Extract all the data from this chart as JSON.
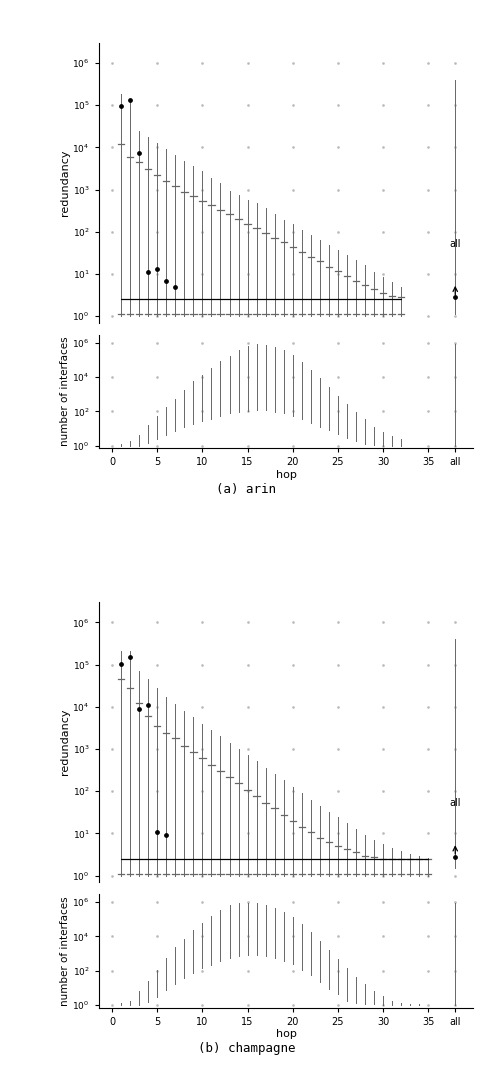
{
  "panels": [
    {
      "name": "arin",
      "label": "(a) arin",
      "redundancy": {
        "hops": [
          1,
          2,
          3,
          4,
          5,
          6,
          7,
          8,
          9,
          10,
          11,
          12,
          13,
          14,
          15,
          16,
          17,
          18,
          19,
          20,
          21,
          22,
          23,
          24,
          25,
          26,
          27,
          28,
          29,
          30,
          31,
          32
        ],
        "q50": [
          2.5,
          2.5,
          2.5,
          2.5,
          2.5,
          2.5,
          2.5,
          2.5,
          2.5,
          2.5,
          2.5,
          2.5,
          2.5,
          2.5,
          2.5,
          2.5,
          2.5,
          2.5,
          2.5,
          2.5,
          2.5,
          2.5,
          2.5,
          2.5,
          2.5,
          2.5,
          2.5,
          2.5,
          2.5,
          2.5,
          2.5,
          2.5
        ],
        "q25": [
          1.1,
          1.1,
          1.1,
          1.1,
          1.1,
          1.1,
          1.1,
          1.1,
          1.1,
          1.1,
          1.1,
          1.1,
          1.1,
          1.1,
          1.1,
          1.1,
          1.1,
          1.1,
          1.1,
          1.1,
          1.1,
          1.1,
          1.1,
          1.1,
          1.1,
          1.1,
          1.1,
          1.1,
          1.1,
          1.1,
          1.1,
          1.1
        ],
        "q75": [
          12000,
          6000,
          4500,
          3000,
          2200,
          1600,
          1200,
          900,
          700,
          550,
          430,
          330,
          260,
          200,
          155,
          120,
          95,
          72,
          57,
          43,
          33,
          26,
          20,
          15,
          12,
          9,
          7,
          5.5,
          4.5,
          3.5,
          3.0,
          2.8
        ],
        "q95": [
          180000,
          120000,
          25000,
          18000,
          13000,
          9000,
          6500,
          4700,
          3700,
          2800,
          1900,
          1400,
          950,
          750,
          570,
          470,
          360,
          265,
          190,
          150,
          110,
          85,
          65,
          48,
          37,
          28,
          21,
          16,
          11,
          8.5,
          6.5,
          4.8
        ],
        "q05": [
          1.0,
          1.0,
          1.0,
          1.0,
          1.0,
          1.0,
          1.0,
          1.0,
          1.0,
          1.0,
          1.0,
          1.0,
          1.0,
          1.0,
          1.0,
          1.0,
          1.0,
          1.0,
          1.0,
          1.0,
          1.0,
          1.0,
          1.0,
          1.0,
          1.0,
          1.0,
          1.0,
          1.0,
          1.0,
          1.0,
          1.0,
          1.0
        ],
        "dots_x": [
          1,
          2,
          3,
          4,
          5,
          6,
          7
        ],
        "dots_y": [
          95000,
          130000,
          7500,
          11,
          13,
          7,
          5
        ],
        "all_q05": 1.1,
        "all_q50": 2.8,
        "all_q95": 400000
      },
      "interfaces": {
        "hops": [
          1,
          2,
          3,
          4,
          5,
          6,
          7,
          8,
          9,
          10,
          11,
          12,
          13,
          14,
          15,
          16,
          17,
          18,
          19,
          20,
          21,
          22,
          23,
          24,
          25,
          26,
          27,
          28,
          29,
          30,
          31,
          32
        ],
        "q05": [
          1,
          1,
          1,
          1.5,
          2.5,
          4,
          7,
          12,
          18,
          26,
          38,
          55,
          75,
          95,
          110,
          120,
          115,
          95,
          75,
          55,
          36,
          22,
          13,
          8,
          4.5,
          2.8,
          1.8,
          1.3,
          1.1,
          1.0,
          1.0,
          1.0
        ],
        "q95": [
          1.3,
          1.8,
          4,
          16,
          50,
          170,
          520,
          1700,
          5500,
          13000,
          35000,
          90000,
          180000,
          370000,
          640000,
          820000,
          740000,
          560000,
          370000,
          185000,
          73000,
          27000,
          9000,
          2700,
          820,
          270,
          90,
          35,
          13,
          6,
          3.5,
          2.3
        ],
        "all_q05": 1,
        "all_q95": 850000
      }
    },
    {
      "name": "champagne",
      "label": "(b) champagne",
      "redundancy": {
        "hops": [
          1,
          2,
          3,
          4,
          5,
          6,
          7,
          8,
          9,
          10,
          11,
          12,
          13,
          14,
          15,
          16,
          17,
          18,
          19,
          20,
          21,
          22,
          23,
          24,
          25,
          26,
          27,
          28,
          29,
          30,
          31,
          32,
          33,
          34,
          35
        ],
        "q50": [
          2.5,
          2.5,
          2.5,
          2.5,
          2.5,
          2.5,
          2.5,
          2.5,
          2.5,
          2.5,
          2.5,
          2.5,
          2.5,
          2.5,
          2.5,
          2.5,
          2.5,
          2.5,
          2.5,
          2.5,
          2.5,
          2.5,
          2.5,
          2.5,
          2.5,
          2.5,
          2.5,
          2.5,
          2.5,
          2.5,
          2.5,
          2.5,
          2.5,
          2.5,
          2.5
        ],
        "q25": [
          1.1,
          1.1,
          1.1,
          1.1,
          1.1,
          1.1,
          1.1,
          1.1,
          1.1,
          1.1,
          1.1,
          1.1,
          1.1,
          1.1,
          1.1,
          1.1,
          1.1,
          1.1,
          1.1,
          1.1,
          1.1,
          1.1,
          1.1,
          1.1,
          1.1,
          1.1,
          1.1,
          1.1,
          1.1,
          1.1,
          1.1,
          1.1,
          1.1,
          1.1,
          1.1
        ],
        "q75": [
          45000,
          28000,
          12000,
          6000,
          3500,
          2400,
          1800,
          1200,
          850,
          600,
          420,
          300,
          215,
          155,
          108,
          78,
          54,
          39,
          27,
          20,
          14,
          11,
          8,
          6.2,
          5.0,
          4.2,
          3.6,
          3.0,
          2.7,
          2.5,
          2.5,
          2.5,
          2.5,
          2.5,
          2.5
        ],
        "q95": [
          210000,
          210000,
          70000,
          45000,
          28000,
          17000,
          11500,
          8000,
          5700,
          4000,
          2800,
          2000,
          1400,
          1000,
          730,
          510,
          360,
          250,
          180,
          125,
          90,
          62,
          45,
          33,
          24,
          18,
          13,
          9,
          7,
          5.5,
          4.5,
          3.8,
          3.2,
          2.9,
          2.6
        ],
        "q05": [
          1.0,
          1.0,
          1.0,
          1.0,
          1.0,
          1.0,
          1.0,
          1.0,
          1.0,
          1.0,
          1.0,
          1.0,
          1.0,
          1.0,
          1.0,
          1.0,
          1.0,
          1.0,
          1.0,
          1.0,
          1.0,
          1.0,
          1.0,
          1.0,
          1.0,
          1.0,
          1.0,
          1.0,
          1.0,
          1.0,
          1.0,
          1.0,
          1.0,
          1.0,
          1.0
        ],
        "dots_x": [
          1,
          2,
          3,
          4,
          5,
          6
        ],
        "dots_y": [
          105000,
          155000,
          9000,
          11000,
          11,
          9
        ],
        "all_q05": 1.5,
        "all_q50": 2.8,
        "all_q95": 400000
      },
      "interfaces": {
        "hops": [
          1,
          2,
          3,
          4,
          5,
          6,
          7,
          8,
          9,
          10,
          11,
          12,
          13,
          14,
          15,
          16,
          17,
          18,
          19,
          20,
          21,
          22,
          23,
          24,
          25,
          26,
          27,
          28,
          29,
          30,
          31,
          32,
          33,
          34,
          35
        ],
        "q05": [
          1,
          1,
          1,
          1.5,
          3,
          8,
          18,
          38,
          75,
          140,
          230,
          370,
          560,
          750,
          860,
          870,
          770,
          580,
          380,
          235,
          110,
          55,
          23,
          9,
          4.5,
          1.8,
          1.4,
          1.2,
          1.1,
          1.0,
          1.0,
          1.0,
          1.0,
          1.0,
          1.0
        ],
        "q95": [
          1.3,
          1.8,
          7,
          26,
          110,
          560,
          2300,
          7500,
          23000,
          65000,
          165000,
          370000,
          650000,
          840000,
          950000,
          850000,
          660000,
          470000,
          280000,
          140000,
          55000,
          18000,
          5500,
          1650,
          470,
          140,
          46,
          16,
          6.5,
          3.2,
          1.8,
          1.4,
          1.2,
          1.1,
          1.0
        ],
        "all_q05": 1,
        "all_q95": 850000
      }
    }
  ],
  "xticks_main": [
    0,
    5,
    10,
    15,
    20,
    25,
    30,
    35
  ],
  "color_line": "#666666",
  "color_dot": "#000000",
  "dot_size": 6,
  "background_color": "#ffffff"
}
